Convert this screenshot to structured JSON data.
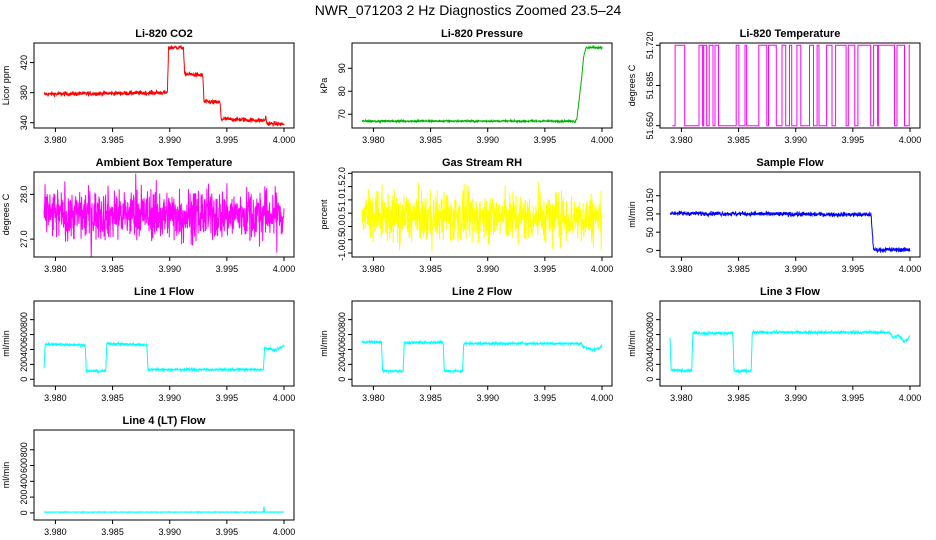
{
  "figure": {
    "title": "NWR_071203  2 Hz Diagnostics Zoomed 23.5–24"
  },
  "chart_data": [
    {
      "id": "co2",
      "type": "line",
      "title": "Li-820 CO2",
      "ylabel": "Licor ppm",
      "color": "#ff0000",
      "xlim": [
        3.979,
        4.0
      ],
      "ylim": [
        333,
        446
      ],
      "xticks": [
        3.98,
        3.985,
        3.99,
        3.995,
        4.0
      ],
      "xtick_labels": [
        "3.980",
        "3.985",
        "3.990",
        "3.995",
        "4.000"
      ],
      "yticks": [
        340,
        380,
        420
      ],
      "ytick_labels": [
        "340",
        "380",
        "420"
      ],
      "x": [
        3.979,
        3.9898,
        3.9899,
        3.9912,
        3.9913,
        3.9929,
        3.993,
        3.9944,
        3.9945,
        3.9983,
        3.9984,
        3.9985,
        4.0
      ],
      "y": [
        378,
        380,
        440,
        440,
        405,
        403,
        368,
        367,
        345,
        343,
        348,
        339,
        338
      ],
      "noise": 1.5
    },
    {
      "id": "pressure",
      "type": "line",
      "title": "Li-820 Pressure",
      "ylabel": "kPa",
      "color": "#00b000",
      "xlim": [
        3.979,
        4.0
      ],
      "ylim": [
        64,
        101
      ],
      "xticks": [
        3.98,
        3.985,
        3.99,
        3.995,
        4.0
      ],
      "xtick_labels": [
        "3.980",
        "3.985",
        "3.990",
        "3.995",
        "4.000"
      ],
      "yticks": [
        70,
        80,
        90
      ],
      "ytick_labels": [
        "70",
        "80",
        "90"
      ],
      "x": [
        3.979,
        3.9975,
        3.9976,
        3.9978,
        3.9982,
        3.9984,
        3.9986,
        4.0
      ],
      "y": [
        67,
        67,
        66.5,
        68,
        85,
        95,
        99,
        99
      ],
      "noise": 0.2
    },
    {
      "id": "licor-temp",
      "type": "line",
      "title": "Li-820 Temperature",
      "ylabel": "degrees C",
      "color": "#ff00ff",
      "xlim": [
        3.979,
        4.0
      ],
      "ylim": [
        51.648,
        51.722
      ],
      "xticks": [
        3.98,
        3.985,
        3.99,
        3.995,
        4.0
      ],
      "xtick_labels": [
        "3.980",
        "3.985",
        "3.990",
        "3.995",
        "4.000"
      ],
      "yticks": [
        51.65,
        51.685,
        51.72
      ],
      "ytick_labels": [
        "51.650",
        "51.685",
        "51.720"
      ],
      "binary_levels": [
        51.65,
        51.72
      ],
      "noise": 0
    },
    {
      "id": "box-temp",
      "type": "line",
      "title": "Ambient Box Temperature",
      "ylabel": "degrees C",
      "color": "#ff00ff",
      "xlim": [
        3.979,
        4.0
      ],
      "ylim": [
        26.6,
        28.5
      ],
      "xticks": [
        3.98,
        3.985,
        3.99,
        3.995,
        4.0
      ],
      "xtick_labels": [
        "3.980",
        "3.985",
        "3.990",
        "3.995",
        "4.000"
      ],
      "yticks": [
        27.0,
        28.0
      ],
      "ytick_labels": [
        "27.0",
        "28.0"
      ],
      "x": [
        3.979,
        4.0
      ],
      "y": [
        27.55,
        27.55
      ],
      "noise": 0.28
    },
    {
      "id": "rh",
      "type": "line",
      "title": "Gas Stream RH",
      "ylabel": "percent",
      "color": "#ffff00",
      "xlim": [
        3.979,
        4.0
      ],
      "ylim": [
        -1.15,
        2.05
      ],
      "xticks": [
        3.98,
        3.985,
        3.99,
        3.995,
        4.0
      ],
      "xtick_labels": [
        "3.980",
        "3.985",
        "3.990",
        "3.995",
        "4.000"
      ],
      "yticks": [
        -1.0,
        -0.5,
        0.0,
        0.5,
        1.0,
        1.5,
        2.0
      ],
      "ytick_labels": [
        "-1.0",
        "-0.5",
        "0.0",
        "0.5",
        "1.0",
        "1.5",
        "2.0"
      ],
      "x": [
        3.979,
        4.0
      ],
      "y": [
        0.35,
        0.35
      ],
      "noise": 0.45
    },
    {
      "id": "sample-flow",
      "type": "line",
      "title": "Sample Flow",
      "ylabel": "ml/min",
      "color": "#0000ff",
      "xlim": [
        3.979,
        4.0
      ],
      "ylim": [
        -18,
        215
      ],
      "xticks": [
        3.98,
        3.985,
        3.99,
        3.995,
        4.0
      ],
      "xtick_labels": [
        "3.980",
        "3.985",
        "3.990",
        "3.995",
        "4.000"
      ],
      "yticks": [
        0,
        50,
        100,
        150
      ],
      "ytick_labels": [
        "0",
        "50",
        "100",
        "150"
      ],
      "x": [
        3.979,
        3.9966,
        3.9967,
        3.9968,
        4.0
      ],
      "y": [
        102,
        98,
        50,
        2,
        2
      ],
      "noise": 3
    },
    {
      "id": "line1",
      "type": "line",
      "title": "Line 1 Flow",
      "ylabel": "ml/min",
      "color": "#00ffff",
      "xlim": [
        3.979,
        4.0
      ],
      "ylim": [
        -90,
        1050
      ],
      "xticks": [
        3.98,
        3.985,
        3.99,
        3.995,
        4.0
      ],
      "xtick_labels": [
        "3.980",
        "3.985",
        "3.990",
        "3.995",
        "4.000"
      ],
      "yticks": [
        0,
        200,
        400,
        600,
        800
      ],
      "ytick_labels": [
        "0",
        "200",
        "400",
        "600",
        "800"
      ],
      "x": [
        3.979,
        3.9791,
        3.9826,
        3.9827,
        3.9844,
        3.9845,
        3.988,
        3.9881,
        3.9982,
        3.9983,
        3.9992,
        4.0
      ],
      "y": [
        150,
        470,
        460,
        110,
        110,
        480,
        460,
        130,
        130,
        420,
        390,
        450
      ],
      "noise": 8
    },
    {
      "id": "line2",
      "type": "line",
      "title": "Line 2 Flow",
      "ylabel": "ml/min",
      "color": "#00ffff",
      "xlim": [
        3.979,
        4.0
      ],
      "ylim": [
        -90,
        1050
      ],
      "xticks": [
        3.98,
        3.985,
        3.99,
        3.995,
        4.0
      ],
      "xtick_labels": [
        "3.980",
        "3.985",
        "3.990",
        "3.995",
        "4.000"
      ],
      "yticks": [
        0,
        200,
        400,
        600,
        800
      ],
      "ytick_labels": [
        "0",
        "200",
        "400",
        "600",
        "800"
      ],
      "x": [
        3.979,
        3.9807,
        3.9808,
        3.9826,
        3.9827,
        3.9861,
        3.9862,
        3.9878,
        3.9879,
        3.9982,
        3.9983,
        3.9992,
        4.0
      ],
      "y": [
        500,
        500,
        110,
        110,
        490,
        500,
        110,
        110,
        480,
        480,
        440,
        390,
        440
      ],
      "noise": 8
    },
    {
      "id": "line3",
      "type": "line",
      "title": "Line 3 Flow",
      "ylabel": "ml/min",
      "color": "#00ffff",
      "xlim": [
        3.979,
        4.0
      ],
      "ylim": [
        -90,
        1050
      ],
      "xticks": [
        3.98,
        3.985,
        3.99,
        3.995,
        4.0
      ],
      "xtick_labels": [
        "3.980",
        "3.985",
        "3.990",
        "3.995",
        "4.000"
      ],
      "yticks": [
        0,
        200,
        400,
        600,
        800
      ],
      "ytick_labels": [
        "0",
        "200",
        "400",
        "600",
        "800"
      ],
      "x": [
        3.979,
        3.9791,
        3.9809,
        3.981,
        3.9845,
        3.9846,
        3.9861,
        3.9862,
        3.9982,
        3.9985,
        3.999,
        3.9995,
        4.0
      ],
      "y": [
        560,
        120,
        120,
        620,
        620,
        110,
        110,
        630,
        630,
        560,
        590,
        500,
        580
      ],
      "noise": 10
    },
    {
      "id": "line4",
      "type": "line",
      "title": "Line 4 (LT) Flow",
      "ylabel": "ml/min",
      "color": "#00ffff",
      "xlim": [
        3.979,
        4.0
      ],
      "ylim": [
        -90,
        1050
      ],
      "xticks": [
        3.98,
        3.985,
        3.99,
        3.995,
        4.0
      ],
      "xtick_labels": [
        "3.980",
        "3.985",
        "3.990",
        "3.995",
        "4.000"
      ],
      "yticks": [
        0,
        200,
        400,
        600,
        800
      ],
      "ytick_labels": [
        "0",
        "200",
        "400",
        "600",
        "800"
      ],
      "x": [
        3.979,
        3.9982,
        3.99825,
        3.9983,
        4.0
      ],
      "y": [
        10,
        10,
        80,
        10,
        10
      ],
      "noise": 2
    }
  ]
}
